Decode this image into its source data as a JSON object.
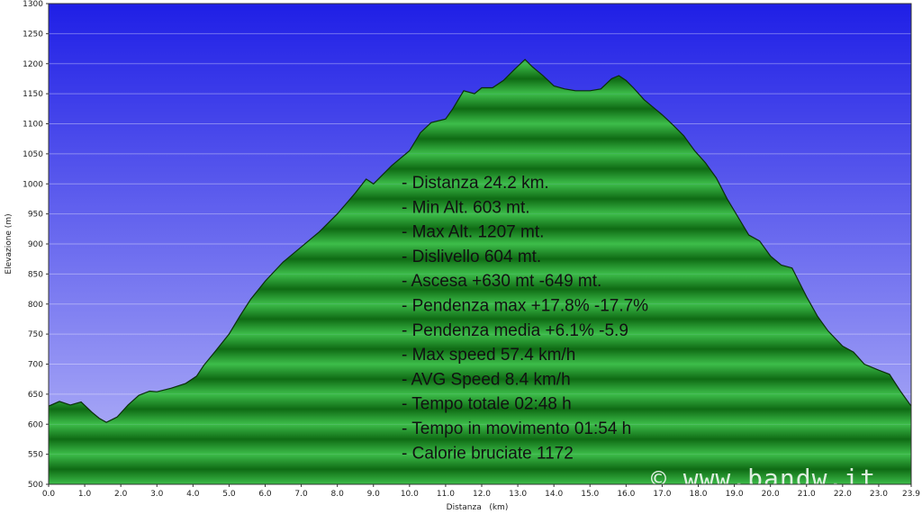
{
  "chart_data": {
    "type": "area",
    "xlabel": "Distanza   (km)",
    "ylabel": "Elevazione (m)",
    "xlim": [
      0,
      23.9
    ],
    "ylim": [
      500,
      1300
    ],
    "x_ticks": [
      "0.0",
      "1.0",
      "2.0",
      "3.0",
      "4.0",
      "5.0",
      "6.0",
      "7.0",
      "8.0",
      "9.0",
      "10.0",
      "11.0",
      "12.0",
      "13.0",
      "14.0",
      "15.0",
      "16.0",
      "17.0",
      "18.0",
      "19.0",
      "20.0",
      "21.0",
      "22.0",
      "23.0",
      "23.9"
    ],
    "y_ticks": [
      "500",
      "550",
      "600",
      "650",
      "700",
      "750",
      "800",
      "850",
      "900",
      "950",
      "1000",
      "1050",
      "1100",
      "1150",
      "1200",
      "1250",
      "1300"
    ],
    "grid": true,
    "series": [
      {
        "x": [
          0,
          0.3,
          0.6,
          0.9,
          1.2,
          1.4,
          1.6,
          1.9,
          2.2,
          2.5,
          2.8,
          3.0,
          3.4,
          3.8,
          4.1,
          4.3,
          4.6,
          5.0,
          5.3,
          5.6,
          6.0,
          6.5,
          7.0,
          7.5,
          8.0,
          8.5,
          8.8,
          9.0,
          9.5,
          10.0,
          10.3,
          10.6,
          11.0,
          11.2,
          11.5,
          11.8,
          12.0,
          12.3,
          12.6,
          12.9,
          13.2,
          13.4,
          13.7,
          14.0,
          14.3,
          14.6,
          15.0,
          15.3,
          15.6,
          15.8,
          16.0,
          16.2,
          16.5,
          16.8,
          17.0,
          17.3,
          17.6,
          17.9,
          18.2,
          18.5,
          18.8,
          19.1,
          19.4,
          19.7,
          20.0,
          20.3,
          20.6,
          21.0,
          21.3,
          21.6,
          22.0,
          22.3,
          22.6,
          23.0,
          23.3,
          23.6,
          23.9
        ],
        "y": [
          630,
          638,
          632,
          637,
          620,
          610,
          603,
          612,
          632,
          648,
          655,
          654,
          660,
          668,
          680,
          698,
          720,
          750,
          780,
          808,
          838,
          870,
          895,
          920,
          950,
          985,
          1008,
          1000,
          1030,
          1055,
          1085,
          1102,
          1108,
          1125,
          1155,
          1150,
          1160,
          1160,
          1172,
          1190,
          1207,
          1195,
          1180,
          1163,
          1158,
          1155,
          1155,
          1158,
          1175,
          1180,
          1172,
          1160,
          1140,
          1125,
          1115,
          1098,
          1080,
          1055,
          1035,
          1010,
          975,
          945,
          915,
          905,
          880,
          865,
          860,
          812,
          780,
          755,
          730,
          720,
          700,
          690,
          683,
          655,
          630
        ]
      }
    ]
  },
  "stats": [
    "- Distanza 24.2 km.",
    "- Min Alt. 603 mt.",
    "- Max Alt. 1207 mt.",
    "- Dislivello 604 mt.",
    "- Ascesa +630 mt -649 mt.",
    "- Pendenza max +17.8% -17.7%",
    "- Pendenza media +6.1% -5.9",
    "- Max speed 57.4 km/h",
    "- AVG Speed 8.4 km/h",
    "- Tempo totale 02:48 h",
    "- Tempo in movimento 01:54 h",
    "- Calorie bruciate 1172"
  ],
  "watermark": "© www.bandw.it",
  "colors": {
    "sky_top": "#1f1fe6",
    "sky_bottom": "#b8b8f8",
    "fill_light": "#3dbd4a",
    "fill_dark": "#0f6b14",
    "outline": "#0b2e0b"
  }
}
